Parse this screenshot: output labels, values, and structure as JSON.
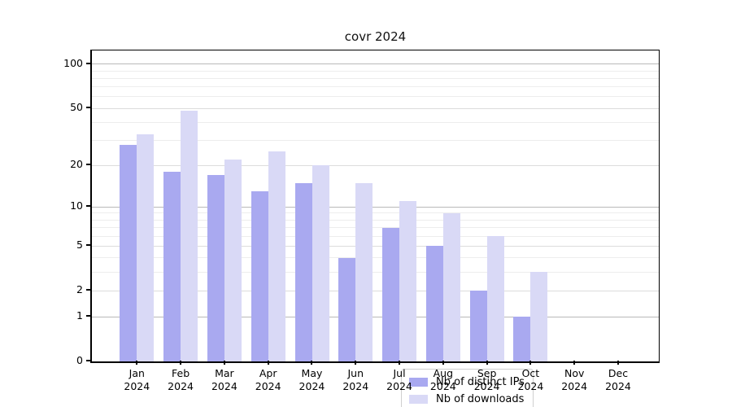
{
  "chart_data": {
    "type": "bar",
    "title": "covr 2024",
    "categories": [
      "Jan",
      "Feb",
      "Mar",
      "Apr",
      "May",
      "Jun",
      "Jul",
      "Aug",
      "Sep",
      "Oct",
      "Nov",
      "Dec"
    ],
    "year_label": "2024",
    "series": [
      {
        "name": "Nb of distinct IPs",
        "color": "#a9a9f0",
        "values": [
          28,
          18,
          17,
          13,
          15,
          4,
          7,
          5,
          2,
          1,
          0,
          0
        ]
      },
      {
        "name": "Nb of downloads",
        "color": "#d9d9f6",
        "values": [
          33,
          48,
          22,
          25,
          20,
          15,
          11,
          9,
          6,
          3,
          0,
          0
        ]
      }
    ],
    "xlabel": "",
    "ylabel": "",
    "y_axis": {
      "scale": "log1p",
      "ticks": [
        0,
        1,
        2,
        5,
        10,
        20,
        50,
        100
      ],
      "minor_gridlines": [
        3,
        4,
        6,
        7,
        8,
        9,
        30,
        40,
        60,
        70,
        80,
        90
      ],
      "range": [
        0,
        121
      ]
    },
    "legend": {
      "position": "bottom-center-inside"
    },
    "grid": true,
    "colors": {
      "major_grid": "#b9b9b9",
      "semi_grid": "#dcdcdc",
      "minor_grid": "#ededed",
      "spine": "#000000",
      "background": "#ffffff"
    }
  }
}
